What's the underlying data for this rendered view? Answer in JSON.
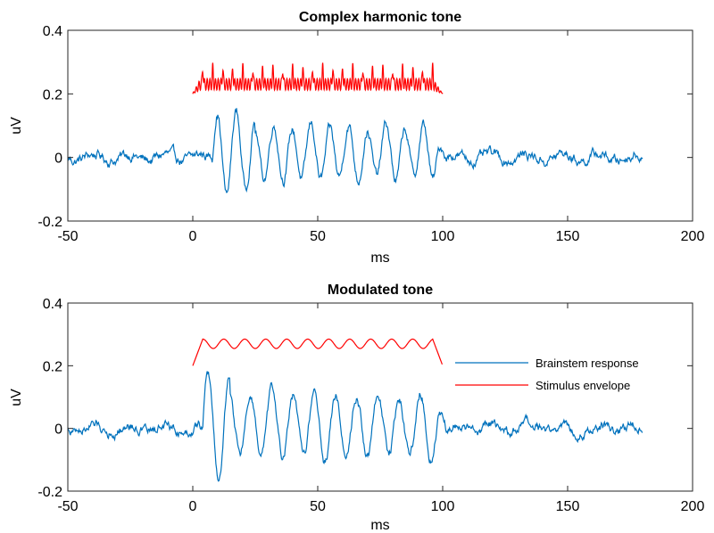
{
  "chart_data": [
    {
      "type": "line",
      "title": "Complex harmonic tone",
      "xlabel": "ms",
      "ylabel": "uV",
      "xlim": [
        -50,
        200
      ],
      "ylim": [
        -0.2,
        0.4
      ],
      "xticks": [
        -50,
        0,
        50,
        100,
        150,
        200
      ],
      "xtick_labels": [
        "-50",
        "0",
        "50",
        "100",
        "150",
        "200"
      ],
      "yticks": [
        -0.2,
        0,
        0.2,
        0.4
      ],
      "ytick_labels": [
        "-0.2",
        "0",
        "0.2",
        "0.4"
      ],
      "grid": false,
      "series": [
        {
          "color": "#0072bd",
          "x_range": [
            -50,
            180
          ],
          "pattern": "noisy baseline near 0 (±0.02); oscillatory response ~ +0.15 / -0.1 between 8 and 100 ms at ~100 Hz"
        },
        {
          "color": "#ff0000",
          "x_range": [
            0,
            100
          ],
          "pattern": "stimulus waveform offset at 0.2, peaks ~0.285 with 10 ms periodicity"
        }
      ]
    },
    {
      "type": "line",
      "title": "Modulated tone",
      "xlabel": "ms",
      "ylabel": "uV",
      "xlim": [
        -50,
        200
      ],
      "ylim": [
        -0.2,
        0.4
      ],
      "xticks": [
        -50,
        0,
        50,
        100,
        150,
        200
      ],
      "xtick_labels": [
        "-50",
        "0",
        "50",
        "100",
        "150",
        "200"
      ],
      "yticks": [
        -0.2,
        0,
        0.2,
        0.4
      ],
      "ytick_labels": [
        "-0.2",
        "0",
        "0.2",
        "0.4"
      ],
      "grid": false,
      "legend": {
        "placement": "right",
        "entries": [
          "Brainstem response",
          "Stimulus envelope"
        ]
      },
      "series": [
        {
          "name": "Brainstem response",
          "color": "#0072bd",
          "x_range": [
            -50,
            180
          ],
          "pattern": "noisy baseline near 0; oscillation ~ +0.17 / -0.12 between 5 and 100 ms at ~100 Hz"
        },
        {
          "name": "Stimulus envelope",
          "color": "#ff0000",
          "x_range": [
            0,
            100
          ],
          "pattern": "rises from 0.2 to ~0.285 by 4 ms, ripples between 0.255 and 0.285 every 10 ms, falls to 0.2 at 100 ms"
        }
      ]
    }
  ]
}
